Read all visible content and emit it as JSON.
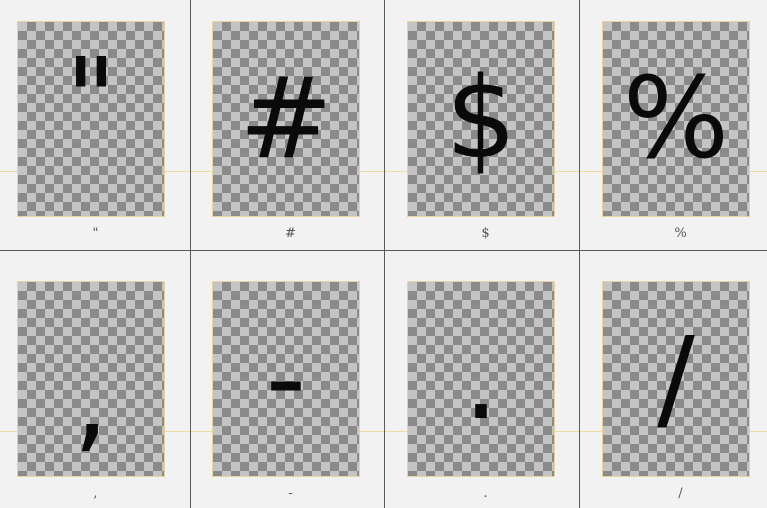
{
  "glyphs": [
    {
      "symbol": "\"",
      "caption": "\""
    },
    {
      "symbol": "#",
      "caption": "#"
    },
    {
      "symbol": "$",
      "caption": "$"
    },
    {
      "symbol": "%",
      "caption": "%"
    },
    {
      "symbol": ",",
      "caption": ","
    },
    {
      "symbol": "-",
      "caption": "-"
    },
    {
      "symbol": ".",
      "caption": "."
    },
    {
      "symbol": "/",
      "caption": "/"
    }
  ],
  "colors": {
    "background": "#f2f2f2",
    "grid_line": "#5a5a5a",
    "baseline": "#f0dca0",
    "tile_border": "#e8d3a0",
    "checker_light": "#c4c4c4",
    "checker_dark": "#8a8a8a",
    "glyph": "#0a0a0a"
  }
}
